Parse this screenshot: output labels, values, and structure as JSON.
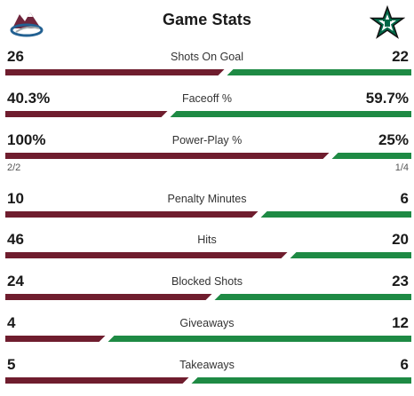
{
  "header": {
    "title": "Game Stats",
    "away_logo": "avalanche-logo",
    "home_logo": "stars-logo"
  },
  "colors": {
    "away": "#6f1d2e",
    "home": "#1e8a44"
  },
  "stats": [
    {
      "label": "Shots On Goal",
      "away": "26",
      "home": "22",
      "away_share": 0.5417
    },
    {
      "label": "Faceoff %",
      "away": "40.3%",
      "home": "59.7%",
      "away_share": 0.403
    },
    {
      "label": "Power-Play %",
      "away": "100%",
      "home": "25%",
      "away_share": 0.8,
      "away_sub": "2/2",
      "home_sub": "1/4"
    },
    {
      "label": "Penalty Minutes",
      "away": "10",
      "home": "6",
      "away_share": 0.625
    },
    {
      "label": "Hits",
      "away": "46",
      "home": "20",
      "away_share": 0.697
    },
    {
      "label": "Blocked Shots",
      "away": "24",
      "home": "23",
      "away_share": 0.511
    },
    {
      "label": "Giveaways",
      "away": "4",
      "home": "12",
      "away_share": 0.25
    },
    {
      "label": "Takeaways",
      "away": "5",
      "home": "6",
      "away_share": 0.4545
    }
  ]
}
